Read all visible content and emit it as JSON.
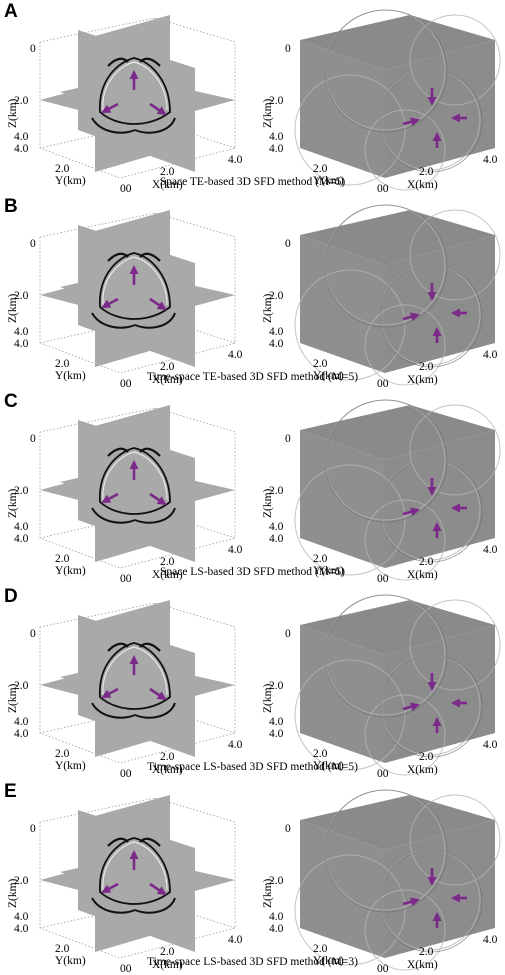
{
  "axis_labels": {
    "z": "Z(km)",
    "y": "Y(km)",
    "x": "X(km)"
  },
  "ticks": {
    "zero": "0",
    "two": "2.0",
    "four": "4.0",
    "origin": "00"
  },
  "colors": {
    "arrow": "#7b2a8a",
    "slice": "#a9a9a9",
    "cube_top": "#8a8a8a",
    "cube_left": "#8f8f8f",
    "cube_right": "#8c8c8c"
  },
  "panels": [
    {
      "letter": "A",
      "caption": "Space TE-based 3D SFD method (M=5)"
    },
    {
      "letter": "B",
      "caption": "Time-space TE-based 3D SFD method (M=5)"
    },
    {
      "letter": "C",
      "caption": "Space LS-based 3D SFD method (M=5)"
    },
    {
      "letter": "D",
      "caption": "Time-space LS-based 3D SFD method (M=5)"
    },
    {
      "letter": "E",
      "caption": "Time-space LS-based 3D SFD method (M=3)"
    }
  ]
}
